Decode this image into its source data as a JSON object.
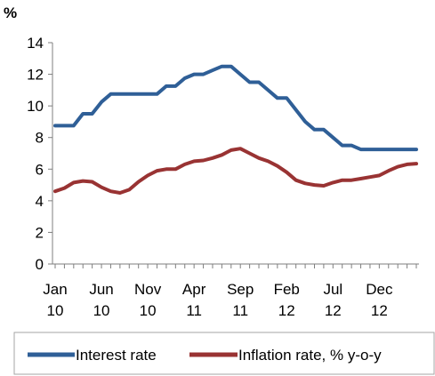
{
  "chart_data": {
    "type": "line",
    "ylabel": "%",
    "ylim": [
      0,
      14
    ],
    "yticks": [
      0,
      2,
      4,
      6,
      8,
      10,
      12,
      14
    ],
    "x": [
      "2010-01",
      "2010-02",
      "2010-03",
      "2010-04",
      "2010-05",
      "2010-06",
      "2010-07",
      "2010-08",
      "2010-09",
      "2010-10",
      "2010-11",
      "2010-12",
      "2011-01",
      "2011-02",
      "2011-03",
      "2011-04",
      "2011-05",
      "2011-06",
      "2011-07",
      "2011-08",
      "2011-09",
      "2011-10",
      "2011-11",
      "2011-12",
      "2012-01",
      "2012-02",
      "2012-03",
      "2012-04",
      "2012-05",
      "2012-06",
      "2012-07",
      "2012-08",
      "2012-09",
      "2012-10",
      "2012-11",
      "2012-12",
      "2013-01",
      "2013-02",
      "2013-03",
      "2013-04"
    ],
    "xtick_labels": [
      {
        "month": "Jan",
        "year": "10"
      },
      {
        "month": "Jun",
        "year": "10"
      },
      {
        "month": "Nov",
        "year": "10"
      },
      {
        "month": "Apr",
        "year": "11"
      },
      {
        "month": "Sep",
        "year": "11"
      },
      {
        "month": "Feb",
        "year": "12"
      },
      {
        "month": "Jul",
        "year": "12"
      },
      {
        "month": "Dec",
        "year": "12"
      }
    ],
    "legend_position": "bottom",
    "series": [
      {
        "name": "Interest rate",
        "color": "#2f5f97",
        "values": [
          8.75,
          8.75,
          8.75,
          9.5,
          9.5,
          10.25,
          10.75,
          10.75,
          10.75,
          10.75,
          10.75,
          10.75,
          11.25,
          11.25,
          11.75,
          12.0,
          12.0,
          12.25,
          12.5,
          12.5,
          12.0,
          11.5,
          11.5,
          11.0,
          10.5,
          10.5,
          9.75,
          9.0,
          8.5,
          8.5,
          8.0,
          7.5,
          7.5,
          7.25,
          7.25,
          7.25,
          7.25,
          7.25,
          7.25,
          7.25
        ]
      },
      {
        "name": "Inflation rate, % y-o-y",
        "color": "#993333",
        "values": [
          4.6,
          4.8,
          5.15,
          5.25,
          5.2,
          4.85,
          4.6,
          4.5,
          4.7,
          5.2,
          5.6,
          5.9,
          6.0,
          6.0,
          6.3,
          6.5,
          6.55,
          6.7,
          6.9,
          7.2,
          7.3,
          7.0,
          6.7,
          6.5,
          6.2,
          5.8,
          5.3,
          5.1,
          5.0,
          4.95,
          5.15,
          5.3,
          5.3,
          5.4,
          5.5,
          5.6,
          5.9,
          6.15,
          6.3,
          6.35
        ]
      }
    ]
  }
}
